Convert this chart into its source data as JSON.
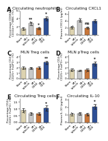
{
  "panels": [
    {
      "label": "A",
      "title": "Circulating neutrophils",
      "ylabel": "Percentage CD66b+\nCD11b+ / WBC (%)",
      "means": [
        1.5,
        2.8,
        1.6,
        4.0
      ],
      "sems": [
        0.35,
        0.45,
        0.3,
        0.55
      ],
      "sig": [
        "",
        "**",
        "*",
        "*"
      ],
      "ylim": [
        0,
        6.0
      ],
      "yticks": [
        0,
        2,
        4,
        6
      ]
    },
    {
      "label": "B",
      "title": "Circulating CXCL1",
      "ylabel": "Plasma CXCL1 (pg/ml)",
      "means": [
        2.2,
        4.2,
        2.0,
        4.0
      ],
      "sems": [
        0.4,
        0.55,
        0.35,
        0.45
      ],
      "sig": [
        "",
        "",
        "ns",
        ""
      ],
      "ylim": [
        0,
        7.0
      ],
      "yticks": [
        0,
        2,
        4,
        6
      ]
    },
    {
      "label": "C",
      "title": "MLN Treg cells",
      "ylabel": "Percentage CD4+\nCD25+ FoxP3+ (%)",
      "means": [
        2.0,
        1.9,
        2.0,
        3.0
      ],
      "sems": [
        0.22,
        0.18,
        0.22,
        0.32
      ],
      "sig": [
        "",
        "",
        "",
        "**"
      ],
      "ylim": [
        0,
        4.5
      ],
      "yticks": [
        0,
        1,
        2,
        3,
        4
      ]
    },
    {
      "label": "D",
      "title": "MLN pTreg cells",
      "ylabel": "Percentage CD4+\nCD25+ FoxP3+ (%)",
      "means": [
        1.6,
        1.5,
        1.6,
        2.8
      ],
      "sems": [
        0.28,
        0.18,
        0.28,
        0.42
      ],
      "sig": [
        "",
        "",
        "",
        "*"
      ],
      "ylim": [
        0,
        4.5
      ],
      "yticks": [
        0,
        1,
        2,
        3,
        4
      ]
    },
    {
      "label": "E",
      "title": "Circulating Treg cells",
      "ylabel": "Percentage CD4+\nCD25+ FoxP3+ (%)",
      "means": [
        0.9,
        0.65,
        0.65,
        1.05
      ],
      "sems": [
        0.14,
        0.11,
        0.11,
        0.19
      ],
      "sig": [
        "",
        "",
        "",
        "*"
      ],
      "ylim": [
        0,
        1.8
      ],
      "yticks": [
        0.0,
        0.5,
        1.0,
        1.5
      ]
    },
    {
      "label": "F",
      "title": "Circulating IL-10",
      "ylabel": "Plasma IL-10 (pg/ml)",
      "means": [
        1.1,
        1.2,
        1.1,
        2.1
      ],
      "sems": [
        0.18,
        0.18,
        0.18,
        0.32
      ],
      "sig": [
        "",
        "",
        "",
        "*"
      ],
      "ylim": [
        0,
        3.2
      ],
      "yticks": [
        0,
        1,
        2,
        3
      ]
    }
  ],
  "bar_colors": [
    "#ddd3b0",
    "#c8c8c8",
    "#c8763a",
    "#2d4f96"
  ],
  "edge_color": "#444444",
  "error_color": "#222222",
  "dot_color": "#444444",
  "background_color": "#ffffff",
  "title_fontsize": 4.2,
  "label_fontsize": 3.0,
  "tick_fontsize": 3.0,
  "sig_fontsize": 4.2,
  "xtick_labels": [
    "Sham",
    "MI+\nVehicle",
    "MI+\nDSS4",
    "MI+\nCD4"
  ]
}
